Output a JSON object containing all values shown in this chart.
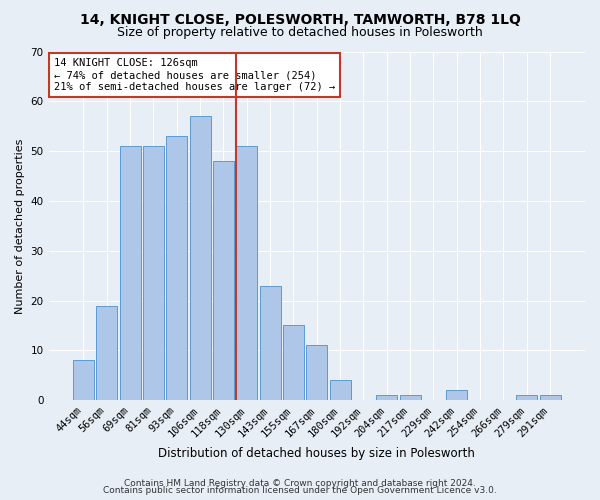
{
  "title": "14, KNIGHT CLOSE, POLESWORTH, TAMWORTH, B78 1LQ",
  "subtitle": "Size of property relative to detached houses in Polesworth",
  "xlabel": "Distribution of detached houses by size in Polesworth",
  "ylabel": "Number of detached properties",
  "categories": [
    "44sqm",
    "56sqm",
    "69sqm",
    "81sqm",
    "93sqm",
    "106sqm",
    "118sqm",
    "130sqm",
    "143sqm",
    "155sqm",
    "167sqm",
    "180sqm",
    "192sqm",
    "204sqm",
    "217sqm",
    "229sqm",
    "242sqm",
    "254sqm",
    "266sqm",
    "279sqm",
    "291sqm"
  ],
  "values": [
    8,
    19,
    51,
    51,
    53,
    57,
    48,
    51,
    23,
    15,
    11,
    4,
    0,
    1,
    1,
    0,
    2,
    0,
    0,
    1,
    1
  ],
  "bar_color": "#aec6e8",
  "bar_edge_color": "#5b9bd5",
  "vline_x_index": 7,
  "vline_color": "#c0392b",
  "annotation_line1": "14 KNIGHT CLOSE: 126sqm",
  "annotation_line2": "← 74% of detached houses are smaller (254)",
  "annotation_line3": "21% of semi-detached houses are larger (72) →",
  "annotation_box_color": "#ffffff",
  "annotation_box_edge": "#c0392b",
  "ylim": [
    0,
    70
  ],
  "yticks": [
    0,
    10,
    20,
    30,
    40,
    50,
    60,
    70
  ],
  "footer1": "Contains HM Land Registry data © Crown copyright and database right 2024.",
  "footer2": "Contains public sector information licensed under the Open Government Licence v3.0.",
  "bg_color": "#e8eef5",
  "plot_bg_color": "#e8eef5",
  "grid_color": "#ffffff",
  "title_fontsize": 10,
  "subtitle_fontsize": 9,
  "xlabel_fontsize": 8.5,
  "ylabel_fontsize": 8,
  "tick_fontsize": 7.5,
  "annot_fontsize": 7.5,
  "footer_fontsize": 6.5
}
